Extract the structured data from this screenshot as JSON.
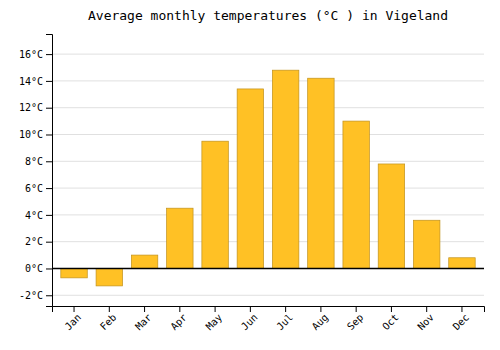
{
  "chart_data": {
    "type": "bar",
    "title": "Average monthly temperatures (°C ) in Vigeland",
    "categories": [
      "Jan",
      "Feb",
      "Mar",
      "Apr",
      "May",
      "Jun",
      "Jul",
      "Aug",
      "Sep",
      "Oct",
      "Nov",
      "Dec"
    ],
    "values": [
      -0.7,
      -1.3,
      1.0,
      4.5,
      9.5,
      13.4,
      14.8,
      14.2,
      11.0,
      7.8,
      3.6,
      0.8
    ],
    "color": "#FFC125",
    "ylim": [
      -2.8,
      17.5
    ],
    "yticks": [
      {
        "value": -2,
        "label": "-2°C"
      },
      {
        "value": 0,
        "label": "0°C"
      },
      {
        "value": 2,
        "label": "2°C"
      },
      {
        "value": 4,
        "label": "4°C"
      },
      {
        "value": 6,
        "label": "6°C"
      },
      {
        "value": 8,
        "label": "8°C"
      },
      {
        "value": 10,
        "label": "10°C"
      },
      {
        "value": 12,
        "label": "12°C"
      },
      {
        "value": 14,
        "label": "14°C"
      },
      {
        "value": 16,
        "label": "16°C"
      }
    ],
    "grid": true
  }
}
